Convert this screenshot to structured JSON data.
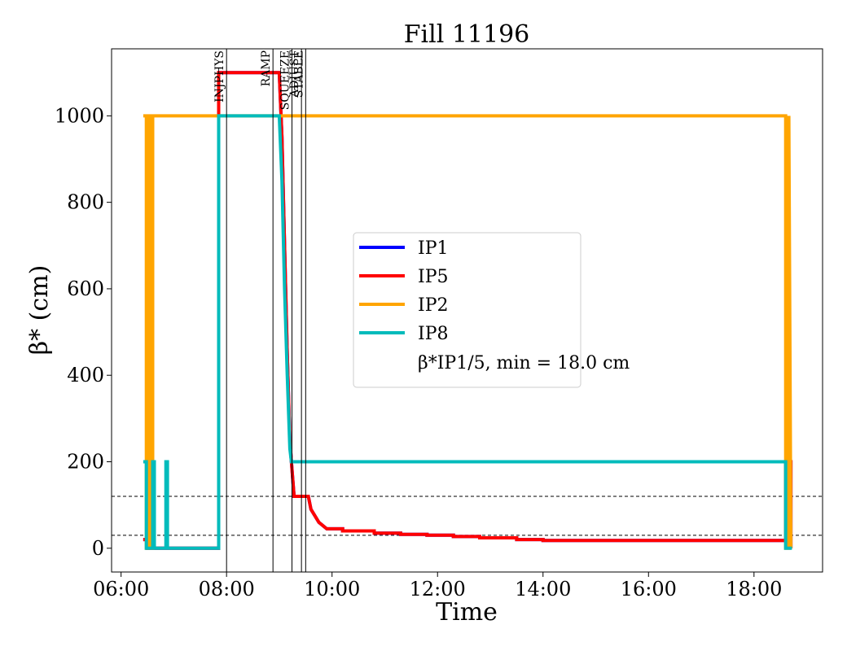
{
  "chart_data": {
    "type": "line",
    "title": "Fill 11196",
    "xlabel": "Time",
    "ylabel": "β* (cm)",
    "xlim_hours": [
      5.82,
      19.3
    ],
    "ylim": [
      -55,
      1155
    ],
    "xticks": [
      {
        "value": 6,
        "label": "06:00"
      },
      {
        "value": 8,
        "label": "08:00"
      },
      {
        "value": 10,
        "label": "10:00"
      },
      {
        "value": 12,
        "label": "12:00"
      },
      {
        "value": 14,
        "label": "14:00"
      },
      {
        "value": 16,
        "label": "16:00"
      },
      {
        "value": 18,
        "label": "18:00"
      }
    ],
    "yticks": [
      0,
      200,
      400,
      600,
      800,
      1000
    ],
    "grid": false,
    "legend_position": "center",
    "legend_note": "β*IP1/5, min = 18.0 cm",
    "phases": [
      {
        "label": "INJPHYS",
        "x": 8.0
      },
      {
        "label": "RAMP",
        "x": 8.88
      },
      {
        "label": "SQUEEZE",
        "x": 9.24
      },
      {
        "label": "ADJUST",
        "x": 9.42
      },
      {
        "label": "STABLE",
        "x": 9.5
      }
    ],
    "hlines": [
      120,
      30
    ],
    "series": [
      {
        "name": "IP1",
        "color": "#0000ff",
        "x": [
          6.42,
          6.5,
          6.5,
          7.85,
          7.85,
          9.0,
          9.05,
          9.1,
          9.15,
          9.2,
          9.23,
          9.28,
          9.3,
          9.55,
          9.6,
          9.75,
          9.9,
          10.2,
          10.2,
          10.8,
          10.8,
          11.3,
          11.3,
          11.8,
          11.8,
          12.3,
          12.3,
          12.8,
          12.8,
          13.5,
          13.5,
          14.0,
          14.0,
          18.6,
          18.6,
          18.7,
          18.7
        ],
        "y": [
          20,
          20,
          0,
          0,
          1100,
          1100,
          950,
          700,
          450,
          250,
          200,
          120,
          120,
          120,
          90,
          60,
          45,
          45,
          40,
          40,
          35,
          35,
          32,
          32,
          30,
          30,
          27,
          27,
          24,
          24,
          20,
          20,
          18,
          18,
          200,
          200,
          0
        ]
      },
      {
        "name": "IP5",
        "color": "#ff0000",
        "x": [
          6.42,
          6.5,
          6.5,
          7.85,
          7.85,
          9.0,
          9.05,
          9.1,
          9.15,
          9.2,
          9.23,
          9.28,
          9.3,
          9.55,
          9.6,
          9.75,
          9.9,
          10.2,
          10.2,
          10.8,
          10.8,
          11.3,
          11.3,
          11.8,
          11.8,
          12.3,
          12.3,
          12.8,
          12.8,
          13.5,
          13.5,
          14.0,
          14.0,
          18.6,
          18.6,
          18.7,
          18.7
        ],
        "y": [
          20,
          20,
          0,
          0,
          1100,
          1100,
          950,
          700,
          450,
          250,
          200,
          120,
          120,
          120,
          90,
          60,
          45,
          45,
          40,
          40,
          35,
          35,
          32,
          32,
          30,
          30,
          27,
          27,
          24,
          24,
          20,
          20,
          18,
          18,
          200,
          200,
          0
        ]
      },
      {
        "name": "IP2",
        "color": "#ffa500",
        "x": [
          6.42,
          6.48,
          6.48,
          6.52,
          6.52,
          6.56,
          6.56,
          6.6,
          6.6,
          7.85,
          7.85,
          18.6,
          18.6,
          18.66,
          18.66,
          18.7
        ],
        "y": [
          1000,
          1000,
          0,
          0,
          1000,
          1000,
          0,
          0,
          1000,
          1000,
          1000,
          1000,
          0,
          0,
          1000,
          0
        ]
      },
      {
        "name": "IP8",
        "color": "#00bbbb",
        "x": [
          6.42,
          6.48,
          6.48,
          6.6,
          6.6,
          6.63,
          6.63,
          6.85,
          6.85,
          6.88,
          6.88,
          7.85,
          7.85,
          9.0,
          9.05,
          9.1,
          9.15,
          9.2,
          9.23,
          18.6,
          18.6,
          18.72
        ],
        "y": [
          200,
          200,
          0,
          0,
          200,
          200,
          0,
          0,
          200,
          200,
          0,
          0,
          1000,
          1000,
          850,
          600,
          400,
          230,
          200,
          200,
          0,
          0
        ]
      }
    ]
  }
}
